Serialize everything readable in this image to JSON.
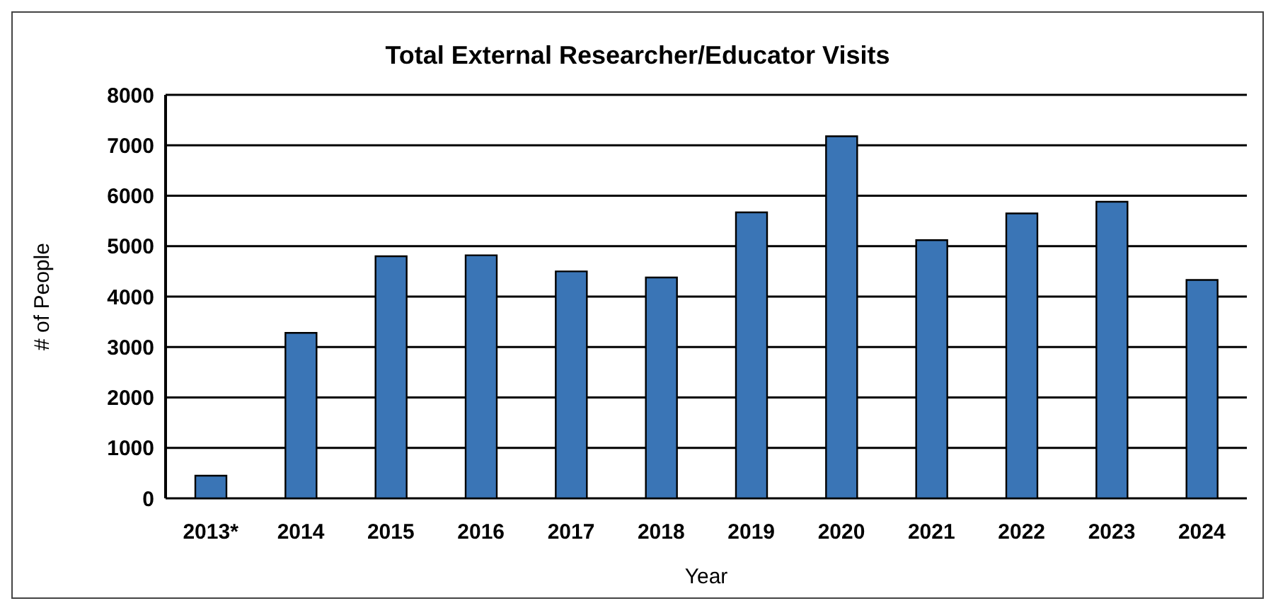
{
  "chart_data": {
    "type": "bar",
    "title": "Total External Researcher/Educator Visits",
    "xlabel": "Year",
    "ylabel": "# of People",
    "categories": [
      "2013*",
      "2014",
      "2015",
      "2016",
      "2017",
      "2018",
      "2019",
      "2020",
      "2021",
      "2022",
      "2023",
      "2024"
    ],
    "values": [
      450,
      3280,
      4800,
      4820,
      4500,
      4380,
      5670,
      7180,
      5120,
      5650,
      5880,
      4330
    ],
    "color": "#3a75b6",
    "ylim": [
      0,
      8000
    ],
    "yticks": [
      0,
      1000,
      2000,
      3000,
      4000,
      5000,
      6000,
      7000,
      8000
    ],
    "grid": "y"
  }
}
